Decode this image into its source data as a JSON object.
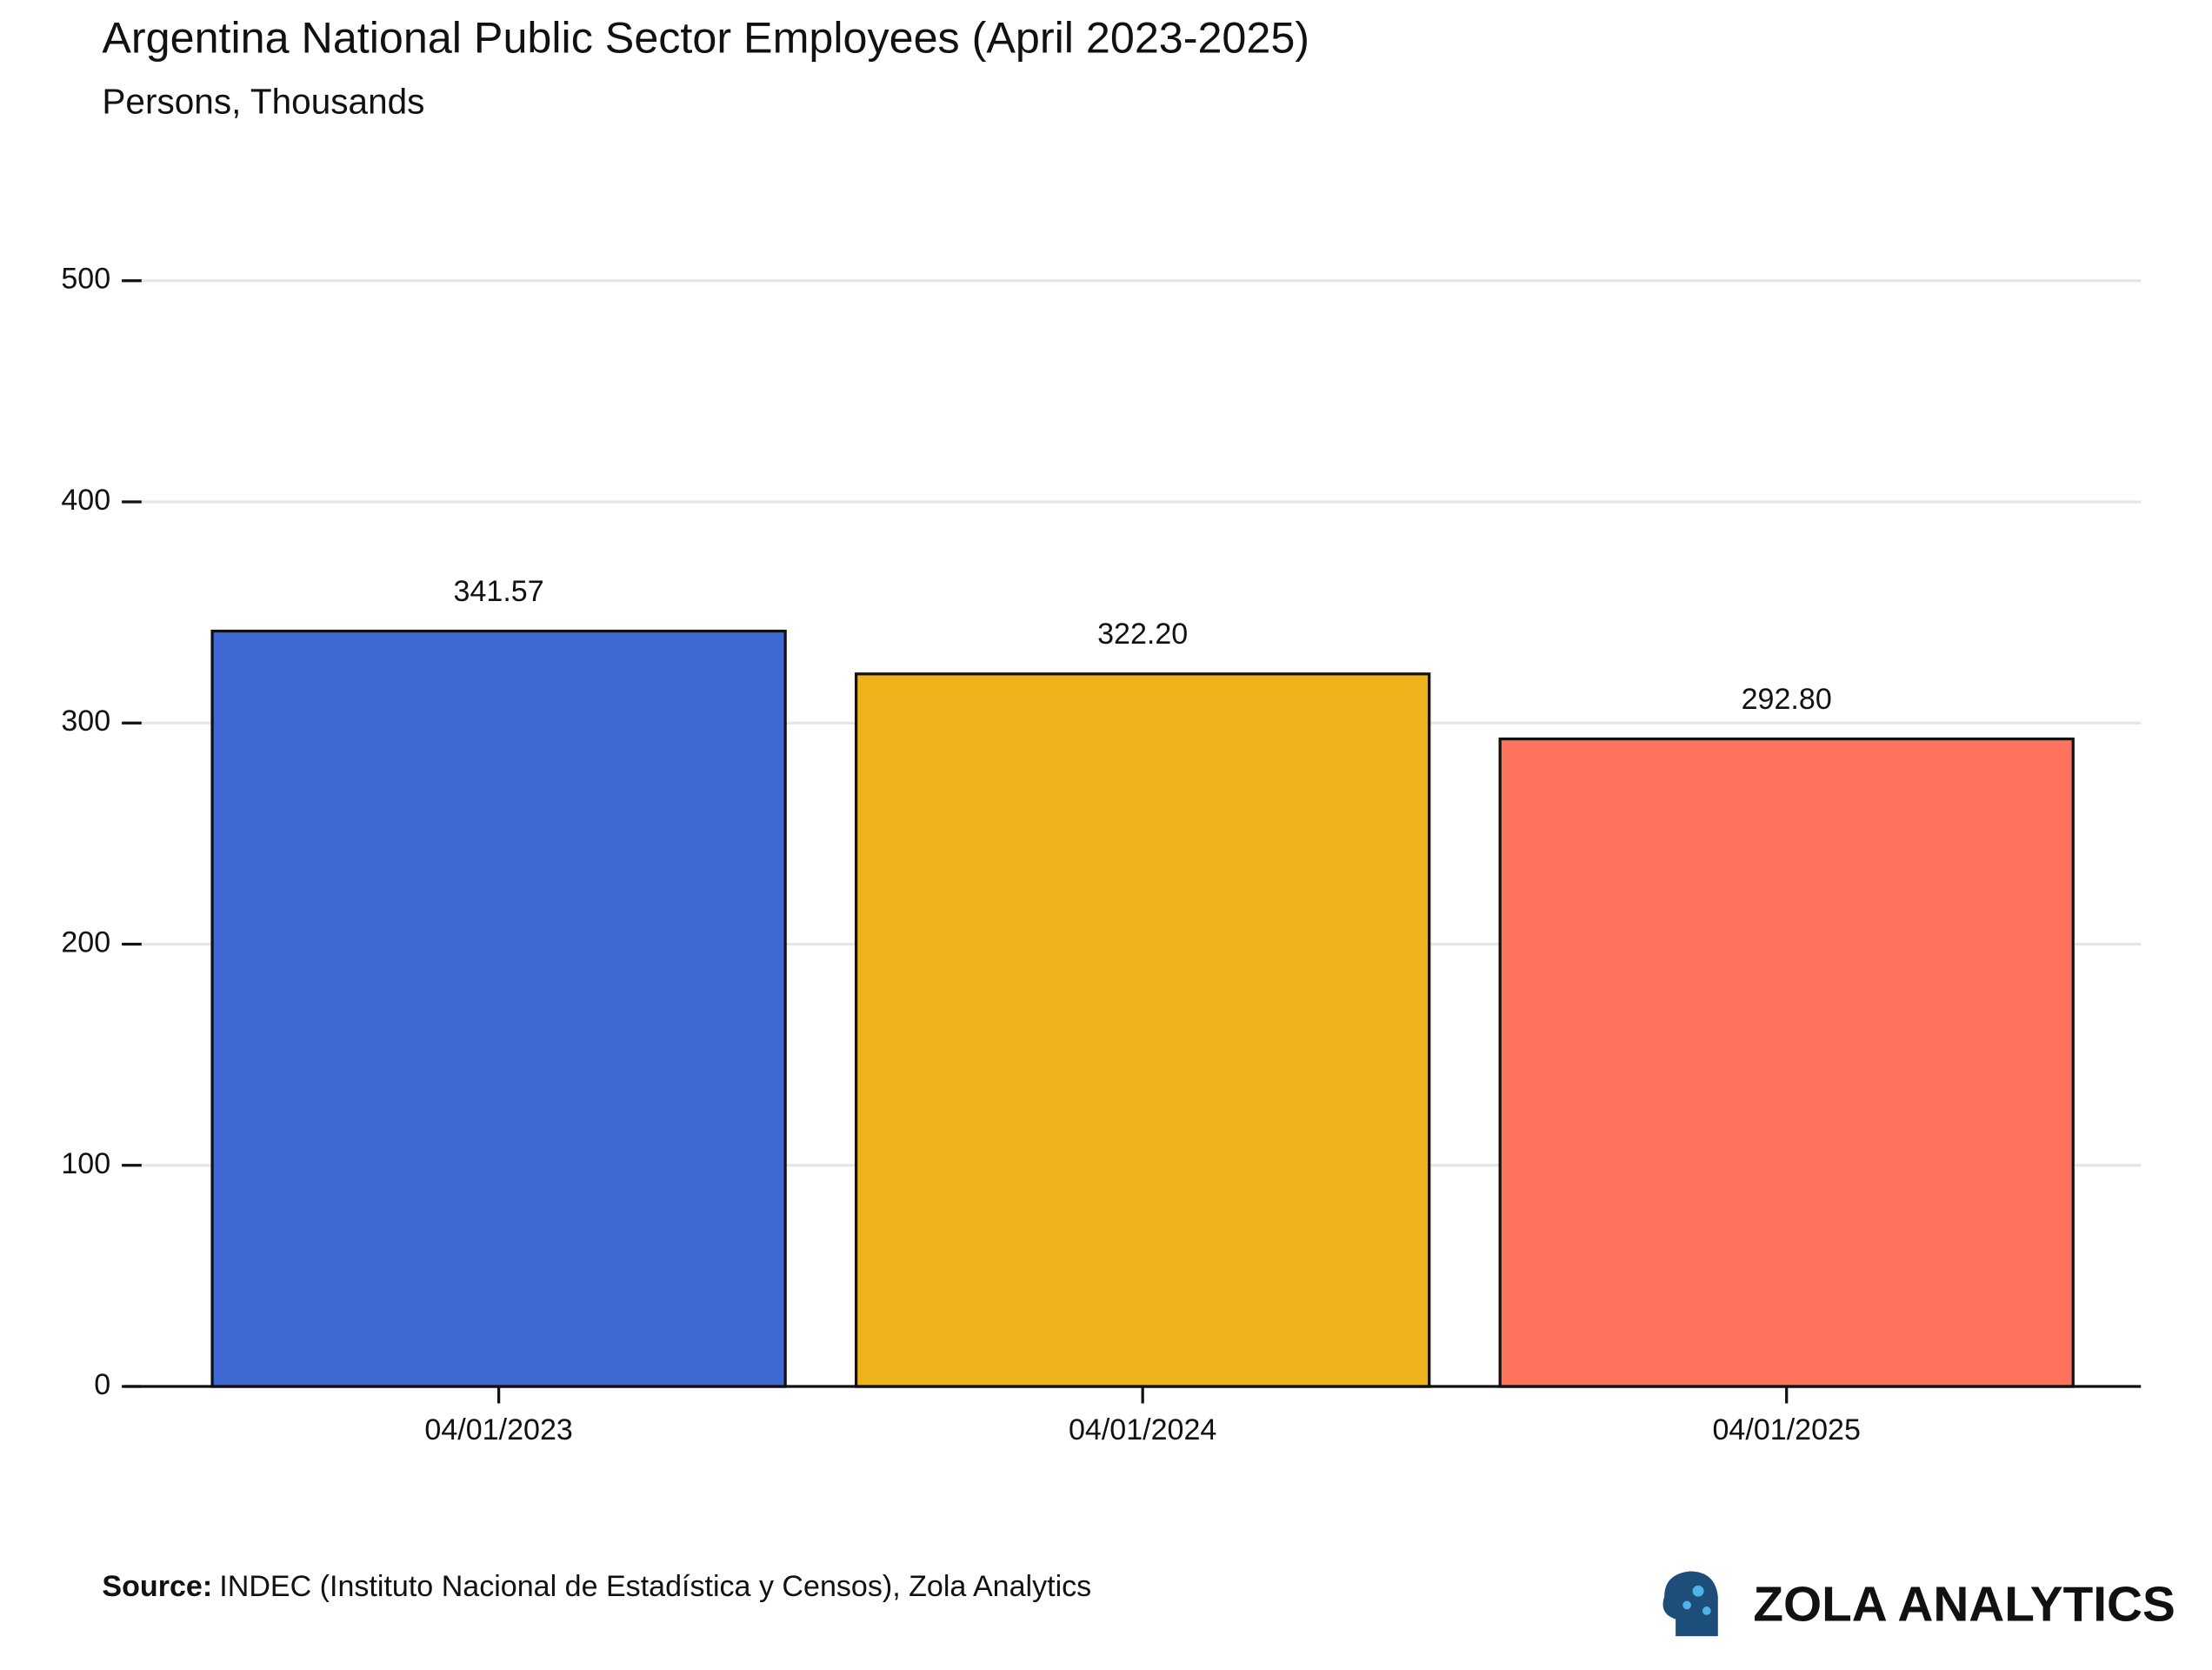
{
  "chart_data": {
    "type": "bar",
    "title": "Argentina National Public Sector Employees (April 2023-2025)",
    "subtitle": "Persons, Thousands",
    "categories": [
      "04/01/2023",
      "04/01/2024",
      "04/01/2025"
    ],
    "values": [
      341.57,
      322.2,
      292.8
    ],
    "value_labels": [
      "341.57",
      "322.20",
      "292.80"
    ],
    "colors": [
      "#4169d4",
      "#eeb31b",
      "#ff735c"
    ],
    "ylim": [
      0,
      500
    ],
    "yticks": [
      0,
      100,
      200,
      300,
      400,
      500
    ],
    "grid": true,
    "source_label": "Source:",
    "source": "INDEC (Instituto Nacional de Estadística y Censos), Zola Analytics",
    "brand": "ZOLA ANALYTICS"
  }
}
